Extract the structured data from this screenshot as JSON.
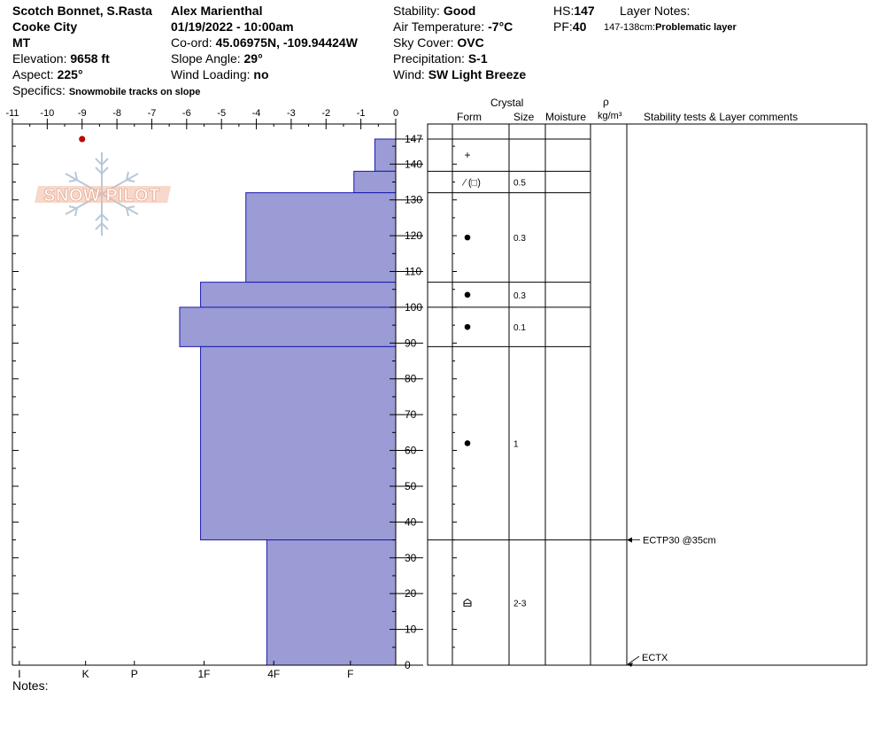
{
  "header": {
    "location": "Scotch Bonnet, S.Rasta",
    "area": "Cooke City",
    "state": "MT",
    "elevation_label": "Elevation: ",
    "elevation": "9658 ft",
    "aspect_label": "Aspect: ",
    "aspect": "225°",
    "specifics_label": "Specifics: ",
    "specifics": "Snowmobile tracks on slope",
    "observer": "Alex Marienthal",
    "datetime": "01/19/2022 - 10:00am",
    "coord_label": "Co-ord: ",
    "coord": "45.06975N, -109.94424W",
    "slope_label": "Slope Angle: ",
    "slope": "29°",
    "wind_loading_label": "Wind Loading: ",
    "wind_loading": "no",
    "stability_label": "Stability: ",
    "stability": "Good",
    "air_temp_label": "Air Temperature: ",
    "air_temp": "-7°C",
    "sky_label": "Sky Cover: ",
    "sky": "OVC",
    "precip_label": "Precipitation: ",
    "precip": "S-1",
    "wind_label": "Wind: ",
    "wind": "SW Light Breeze",
    "hs_label": "HS:",
    "hs": "147",
    "pf_label": "PF:",
    "pf": "40",
    "layer_notes_label": "Layer Notes:",
    "layer_note_range": "147-138cm:",
    "layer_note_text": "Problematic layer"
  },
  "columns": {
    "crystal": "Crystal",
    "form": "Form",
    "size": "Size",
    "moisture": "Moisture",
    "rho": "ρ",
    "density_unit": "kg/m³",
    "comments": "Stability tests & Layer comments"
  },
  "notes_label": "Notes:",
  "logo_text": "SNOW PILOT",
  "colors": {
    "hardness_fill": "#9b9bd6",
    "hardness_stroke": "#1a1ab0",
    "temp_point": "#cc0000",
    "logo_text": "#f0b8a0",
    "logo_flake": "#b8c8d8"
  },
  "chart_data": {
    "type": "snow_profile",
    "temperature_axis": {
      "range": [
        -11,
        0
      ],
      "ticks": [
        "-11",
        "-10",
        "-9",
        "-8",
        "-7",
        "-6",
        "-5",
        "-4",
        "-3",
        "-2",
        "-1",
        "0"
      ]
    },
    "depth_axis": {
      "range": [
        0,
        147
      ],
      "ticks": [
        "0",
        "10",
        "20",
        "30",
        "40",
        "50",
        "60",
        "70",
        "80",
        "90",
        "100",
        "110",
        "120",
        "130",
        "140",
        "147"
      ],
      "tick_values": [
        0,
        10,
        20,
        30,
        40,
        50,
        60,
        70,
        80,
        90,
        100,
        110,
        120,
        130,
        140,
        147
      ]
    },
    "hardness_axis": {
      "labels": [
        "I",
        "K",
        "P",
        "1F",
        "4F",
        "F"
      ],
      "label_temps": [
        -10.8,
        -8.9,
        -7.5,
        -5.5,
        -3.5,
        -1.3
      ]
    },
    "temperature_points": [
      {
        "depth": 147,
        "temp": -9
      }
    ],
    "hardness_profile": [
      {
        "top": 147,
        "bottom": 138,
        "hardness_temp": -0.6
      },
      {
        "top": 138,
        "bottom": 132,
        "hardness_temp": -1.2
      },
      {
        "top": 132,
        "bottom": 107,
        "hardness_temp": -4.3
      },
      {
        "top": 107,
        "bottom": 100,
        "hardness_temp": -5.6
      },
      {
        "top": 100,
        "bottom": 89,
        "hardness_temp": -6.2
      },
      {
        "top": 89,
        "bottom": 35,
        "hardness_temp": -5.6
      },
      {
        "top": 35,
        "bottom": 0,
        "hardness_temp": -3.7
      }
    ],
    "layers": [
      {
        "top": 147,
        "bottom": 138,
        "form": "+",
        "size": ""
      },
      {
        "top": 138,
        "bottom": 132,
        "form": "⁄ (□)",
        "size": "0.5"
      },
      {
        "top": 132,
        "bottom": 107,
        "form": "●",
        "size": "0.3"
      },
      {
        "top": 107,
        "bottom": 100,
        "form": "●",
        "size": "0.3"
      },
      {
        "top": 100,
        "bottom": 89,
        "form": "●",
        "size": "0.1"
      },
      {
        "top": 89,
        "bottom": 35,
        "form": "●",
        "size": "1"
      },
      {
        "top": 35,
        "bottom": 0,
        "form": "⌂",
        "size": "2-3"
      }
    ],
    "stability_tests": [
      {
        "depth": 35,
        "text": "ECTP30 @35cm"
      },
      {
        "depth": 0,
        "text": "ECTX"
      }
    ]
  }
}
